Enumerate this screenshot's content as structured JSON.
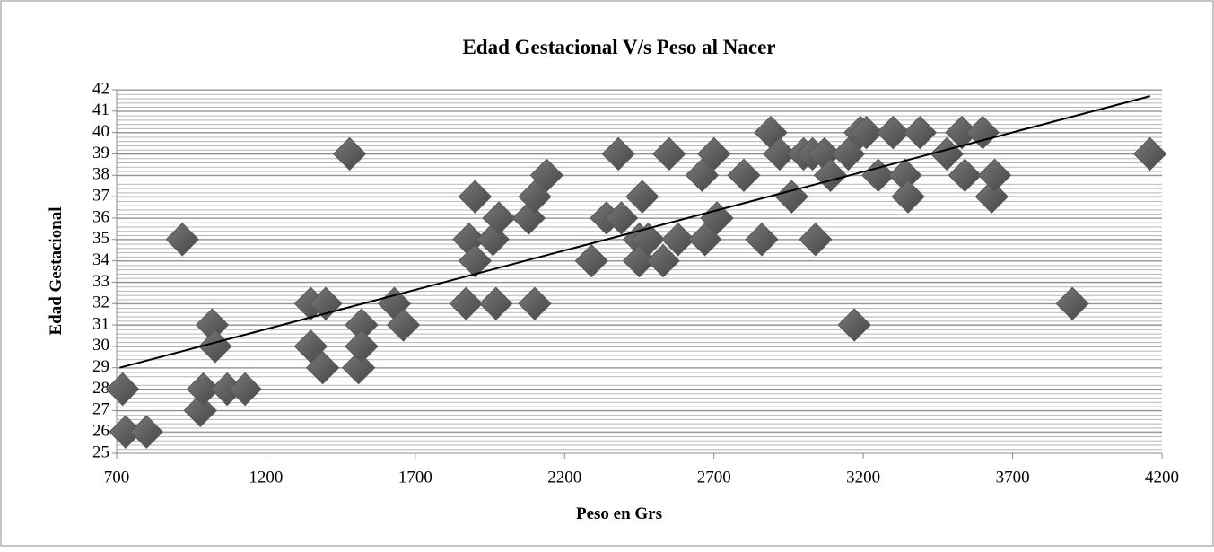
{
  "chart_data": {
    "type": "scatter",
    "title": "Edad Gestacional V/s Peso al Nacer",
    "xlabel": "Peso en Grs",
    "ylabel": "Edad Gestacional",
    "color": "#595959",
    "xlim": [
      700,
      4200
    ],
    "xticks": [
      700,
      1200,
      1700,
      2200,
      2700,
      3200,
      3700,
      4200
    ],
    "ylim": [
      25,
      42
    ],
    "yticks": [
      25,
      26,
      27,
      28,
      29,
      30,
      31,
      32,
      33,
      34,
      35,
      36,
      37,
      38,
      39,
      40,
      41,
      42
    ],
    "grid": true,
    "x": [
      720,
      730,
      800,
      920,
      980,
      990,
      1020,
      1030,
      1070,
      1130,
      1350,
      1350,
      1390,
      1400,
      1480,
      1510,
      1520,
      1520,
      1630,
      1660,
      1870,
      1880,
      1900,
      1900,
      1960,
      1970,
      1980,
      2080,
      2100,
      2100,
      2140,
      2290,
      2340,
      2380,
      2390,
      2450,
      2450,
      2460,
      2480,
      2530,
      2550,
      2580,
      2660,
      2670,
      2700,
      2710,
      2800,
      2860,
      2890,
      2920,
      2960,
      3000,
      3030,
      3040,
      3070,
      3090,
      3150,
      3170,
      3190,
      3210,
      3250,
      3300,
      3340,
      3350,
      3390,
      3480,
      3530,
      3540,
      3600,
      3630,
      3640,
      3900,
      4160
    ],
    "y": [
      28,
      26,
      26,
      35,
      27,
      28,
      31,
      30,
      28,
      28,
      32,
      30,
      29,
      32,
      39,
      29,
      31,
      30,
      32,
      31,
      32,
      35,
      37,
      34,
      35,
      32,
      36,
      36,
      37,
      32,
      38,
      34,
      36,
      39,
      36,
      35,
      34,
      37,
      35,
      34,
      39,
      35,
      38,
      35,
      39,
      36,
      38,
      35,
      40,
      39,
      37,
      39,
      39,
      35,
      39,
      38,
      39,
      31,
      40,
      40,
      38,
      40,
      38,
      37,
      40,
      39,
      40,
      38,
      40,
      37,
      38,
      32,
      39
    ],
    "trendline": {
      "x": [
        710,
        4160
      ],
      "y": [
        29,
        41.7
      ]
    }
  }
}
